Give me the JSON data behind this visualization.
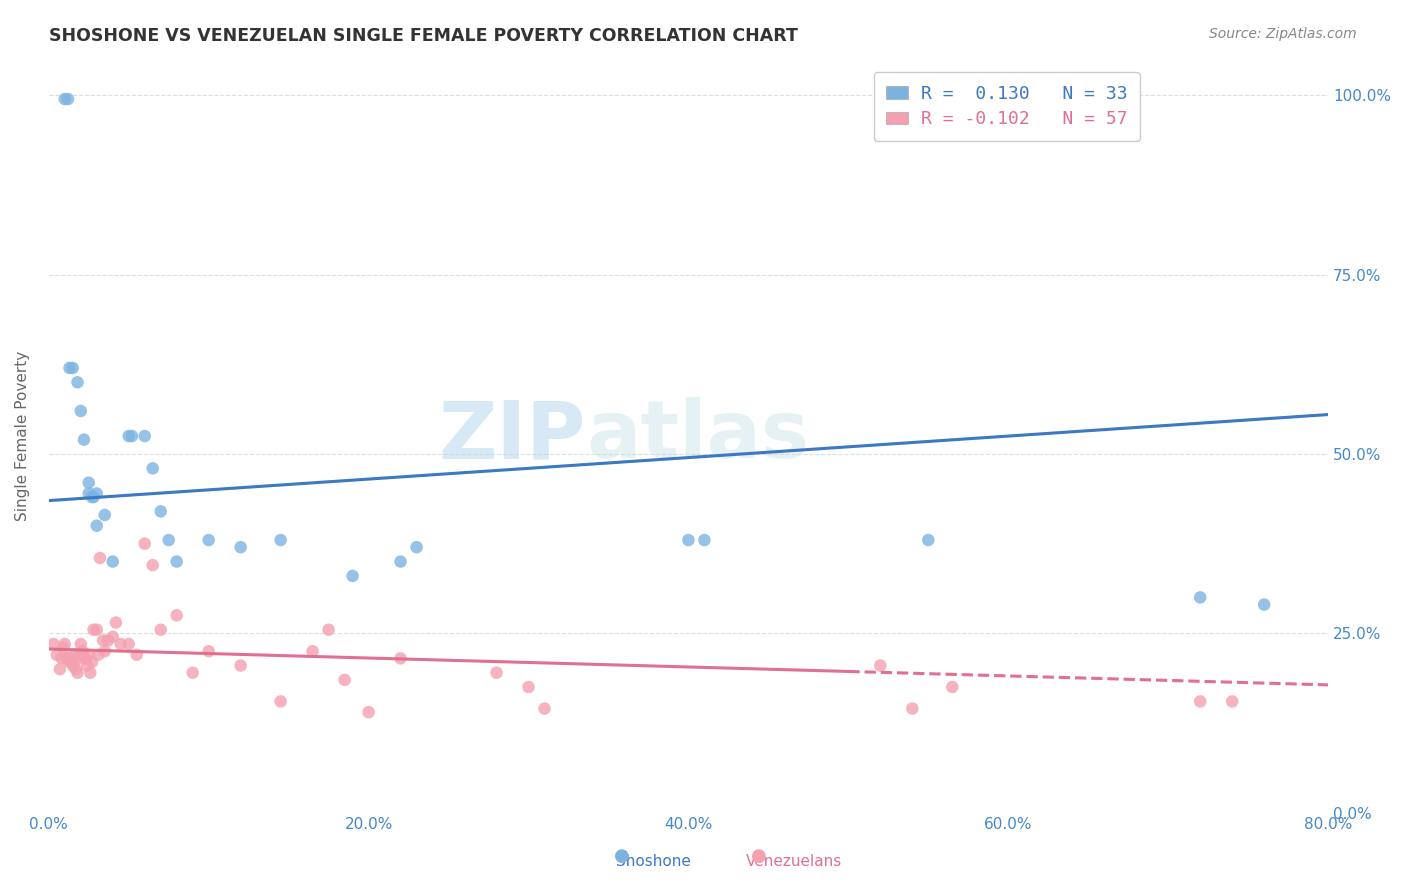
{
  "title": "SHOSHONE VS VENEZUELAN SINGLE FEMALE POVERTY CORRELATION CHART",
  "source": "Source: ZipAtlas.com",
  "ylabel": "Single Female Poverty",
  "xlabel_ticks": [
    "0.0%",
    "20.0%",
    "40.0%",
    "60.0%",
    "80.0%"
  ],
  "xlabel_vals": [
    0.0,
    0.2,
    0.4,
    0.6,
    0.8
  ],
  "ylabel_ticks": [
    "0.0%",
    "25.0%",
    "50.0%",
    "75.0%",
    "100.0%"
  ],
  "ylabel_vals": [
    0.0,
    0.25,
    0.5,
    0.75,
    1.0
  ],
  "xmin": 0.0,
  "xmax": 0.8,
  "ymin": 0.0,
  "ymax": 1.05,
  "shoshone_color": "#7bb3e0",
  "venezuelan_color": "#f4a0b0",
  "shoshone_R": 0.13,
  "shoshone_N": 33,
  "venezuelan_R": -0.102,
  "venezuelan_N": 57,
  "legend_label_shoshone": "Shoshone",
  "legend_label_venezuelan": "Venezuelans",
  "watermark_zip": "ZIP",
  "watermark_atlas": "atlas",
  "shoshone_x": [
    0.01,
    0.012,
    0.013,
    0.015,
    0.018,
    0.02,
    0.022,
    0.025,
    0.025,
    0.027,
    0.028,
    0.03,
    0.03,
    0.035,
    0.04,
    0.05,
    0.052,
    0.06,
    0.065,
    0.07,
    0.075,
    0.08,
    0.1,
    0.12,
    0.145,
    0.19,
    0.22,
    0.23,
    0.4,
    0.41,
    0.55,
    0.72,
    0.76
  ],
  "shoshone_y": [
    0.995,
    0.995,
    0.62,
    0.62,
    0.6,
    0.56,
    0.52,
    0.46,
    0.445,
    0.44,
    0.44,
    0.445,
    0.4,
    0.415,
    0.35,
    0.525,
    0.525,
    0.525,
    0.48,
    0.42,
    0.38,
    0.35,
    0.38,
    0.37,
    0.38,
    0.33,
    0.35,
    0.37,
    0.38,
    0.38,
    0.38,
    0.3,
    0.29
  ],
  "venezuelan_x": [
    0.003,
    0.005,
    0.007,
    0.008,
    0.009,
    0.01,
    0.011,
    0.012,
    0.013,
    0.014,
    0.015,
    0.016,
    0.016,
    0.017,
    0.018,
    0.019,
    0.02,
    0.021,
    0.022,
    0.023,
    0.024,
    0.025,
    0.026,
    0.027,
    0.028,
    0.03,
    0.031,
    0.032,
    0.034,
    0.035,
    0.037,
    0.04,
    0.042,
    0.045,
    0.05,
    0.055,
    0.06,
    0.065,
    0.07,
    0.08,
    0.09,
    0.1,
    0.12,
    0.145,
    0.165,
    0.175,
    0.185,
    0.2,
    0.22,
    0.28,
    0.3,
    0.31,
    0.52,
    0.54,
    0.565,
    0.72,
    0.74
  ],
  "venezuelan_y": [
    0.235,
    0.22,
    0.2,
    0.215,
    0.23,
    0.235,
    0.215,
    0.215,
    0.21,
    0.215,
    0.205,
    0.21,
    0.22,
    0.2,
    0.195,
    0.22,
    0.235,
    0.225,
    0.215,
    0.215,
    0.205,
    0.22,
    0.195,
    0.21,
    0.255,
    0.255,
    0.22,
    0.355,
    0.24,
    0.225,
    0.24,
    0.245,
    0.265,
    0.235,
    0.235,
    0.22,
    0.375,
    0.345,
    0.255,
    0.275,
    0.195,
    0.225,
    0.205,
    0.155,
    0.225,
    0.255,
    0.185,
    0.14,
    0.215,
    0.195,
    0.175,
    0.145,
    0.205,
    0.145,
    0.175,
    0.155,
    0.155
  ],
  "shoshone_line_color": "#3c78c3",
  "venezuelan_line_color": "#e07090",
  "background_color": "#ffffff",
  "grid_color": "#dddddd",
  "title_color": "#333333",
  "axis_color": "#4488cc",
  "marker_size": 9,
  "line_width": 2.2,
  "shoshone_line_y0": 0.435,
  "shoshone_line_y1": 0.555,
  "venezuelan_line_y0": 0.228,
  "venezuelan_line_y1": 0.178
}
